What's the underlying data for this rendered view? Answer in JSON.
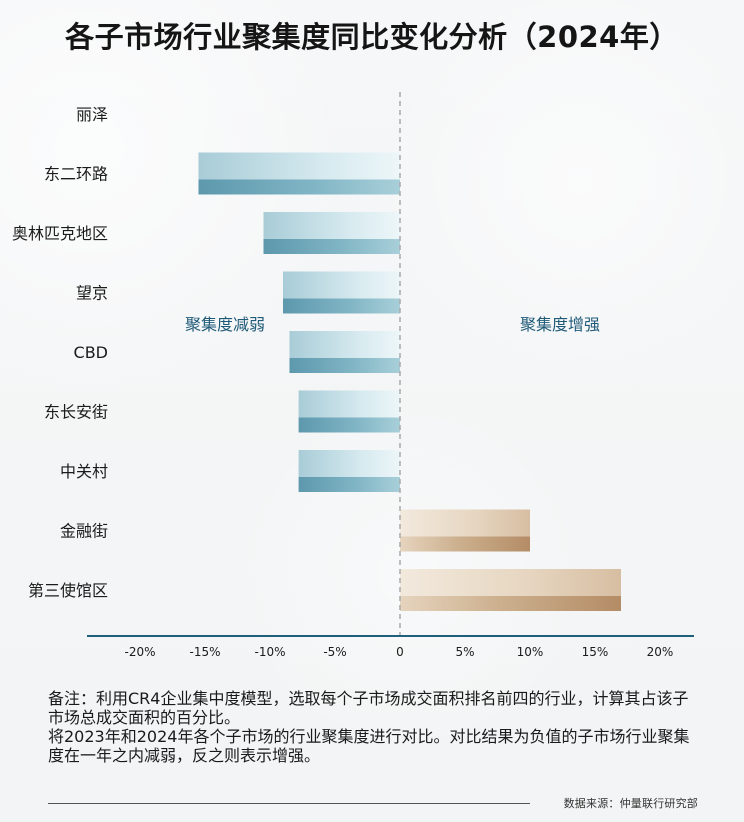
{
  "title": "各子市场行业聚集度同比变化分析（2024年）",
  "notes": [
    "备注：利用CR4企业集中度模型，选取每个子市场成交面积排名前四的行业，计算其占该子市场总成交面积的百分比。",
    "将2023年和2024年各个子市场的行业聚集度进行对比。对比结果为负值的子市场行业聚集度在一年之内减弱，反之则表示增强。"
  ],
  "source": "数据来源：仲量联行研究部",
  "chart_data": {
    "type": "bar",
    "orientation": "horizontal",
    "categories": [
      "丽泽",
      "东二环路",
      "奥林匹克地区",
      "望京",
      "CBD",
      "东长安街",
      "中关村",
      "金融街",
      "第三使馆区"
    ],
    "values": [
      0,
      -15.5,
      -10.5,
      -9.0,
      -8.5,
      -7.8,
      -7.8,
      10.0,
      17.0
    ],
    "xlim": [
      -22,
      21
    ],
    "xticks": [
      -20,
      -15,
      -10,
      -5,
      0,
      5,
      10,
      15,
      20
    ],
    "xtick_labels": [
      "-20%",
      "-15%",
      "-10%",
      "-5%",
      "0",
      "5%",
      "10%",
      "15%",
      "20%"
    ],
    "annotations": [
      {
        "text": "聚集度减弱",
        "side": "left"
      },
      {
        "text": "聚集度增强",
        "side": "right"
      }
    ],
    "colors": {
      "negative_light": "#d3e7ee",
      "negative_mid": "#a9ccd7",
      "negative_dark": "#5f98ad",
      "positive_light": "#f1e6d8",
      "positive_mid": "#dcc6ac",
      "positive_dark": "#b58f69",
      "axis": "#1f5f79",
      "zero_line": "#a9a9a9",
      "text": "#1b1b1b",
      "annotation": "#1f5a78"
    },
    "grid": false
  }
}
